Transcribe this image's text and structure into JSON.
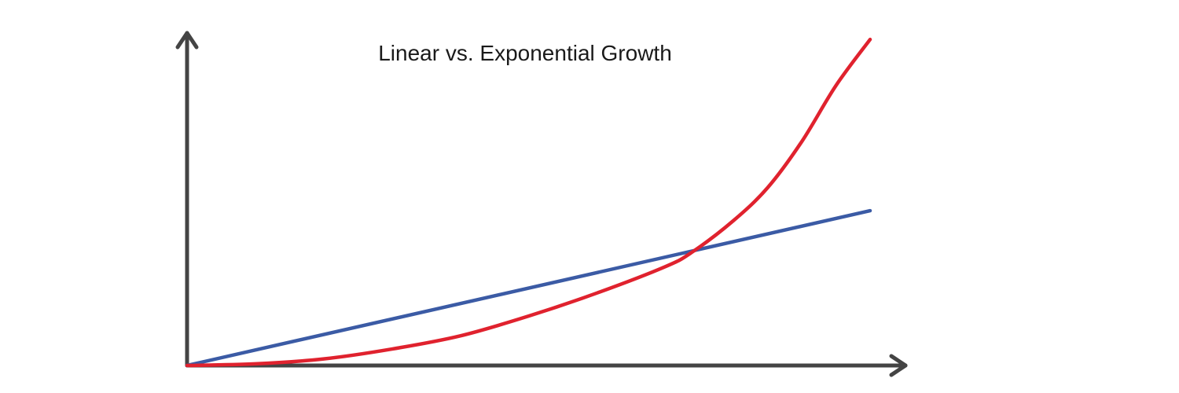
{
  "chart_data": {
    "type": "line",
    "title": "Linear vs. Exponential Growth",
    "xlabel": "",
    "ylabel": "",
    "xlim": [
      0,
      100
    ],
    "ylim": [
      0,
      100
    ],
    "grid": false,
    "legend": "none",
    "series": [
      {
        "color": "#3b5ba5",
        "x": [
          0,
          100
        ],
        "y": [
          0,
          47
        ]
      },
      {
        "color": "#e0222e",
        "x": [
          0,
          10,
          20,
          30,
          40,
          50,
          60,
          70,
          74,
          80,
          85,
          90,
          95,
          100
        ],
        "y": [
          0,
          0.5,
          2,
          5,
          9,
          15,
          22,
          30,
          34.5,
          44,
          54,
          68,
          85,
          99
        ]
      }
    ]
  }
}
